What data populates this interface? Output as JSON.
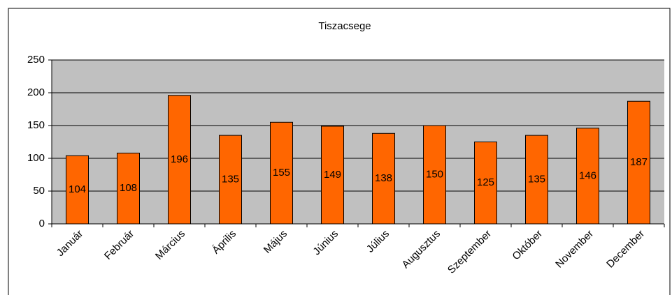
{
  "chart_data": {
    "type": "bar",
    "title": "Tiszacsege",
    "categories": [
      "Január",
      "Február",
      "Március",
      "Április",
      "Május",
      "Június",
      "Július",
      "Augusztus",
      "Szeptember",
      "Október",
      "November",
      "December"
    ],
    "values": [
      104,
      108,
      196,
      135,
      155,
      149,
      138,
      150,
      125,
      135,
      146,
      187
    ],
    "color": "#ff6600",
    "ylim": [
      0,
      250
    ],
    "yticks": [
      0,
      50,
      100,
      150,
      200,
      250
    ],
    "grid": true
  }
}
